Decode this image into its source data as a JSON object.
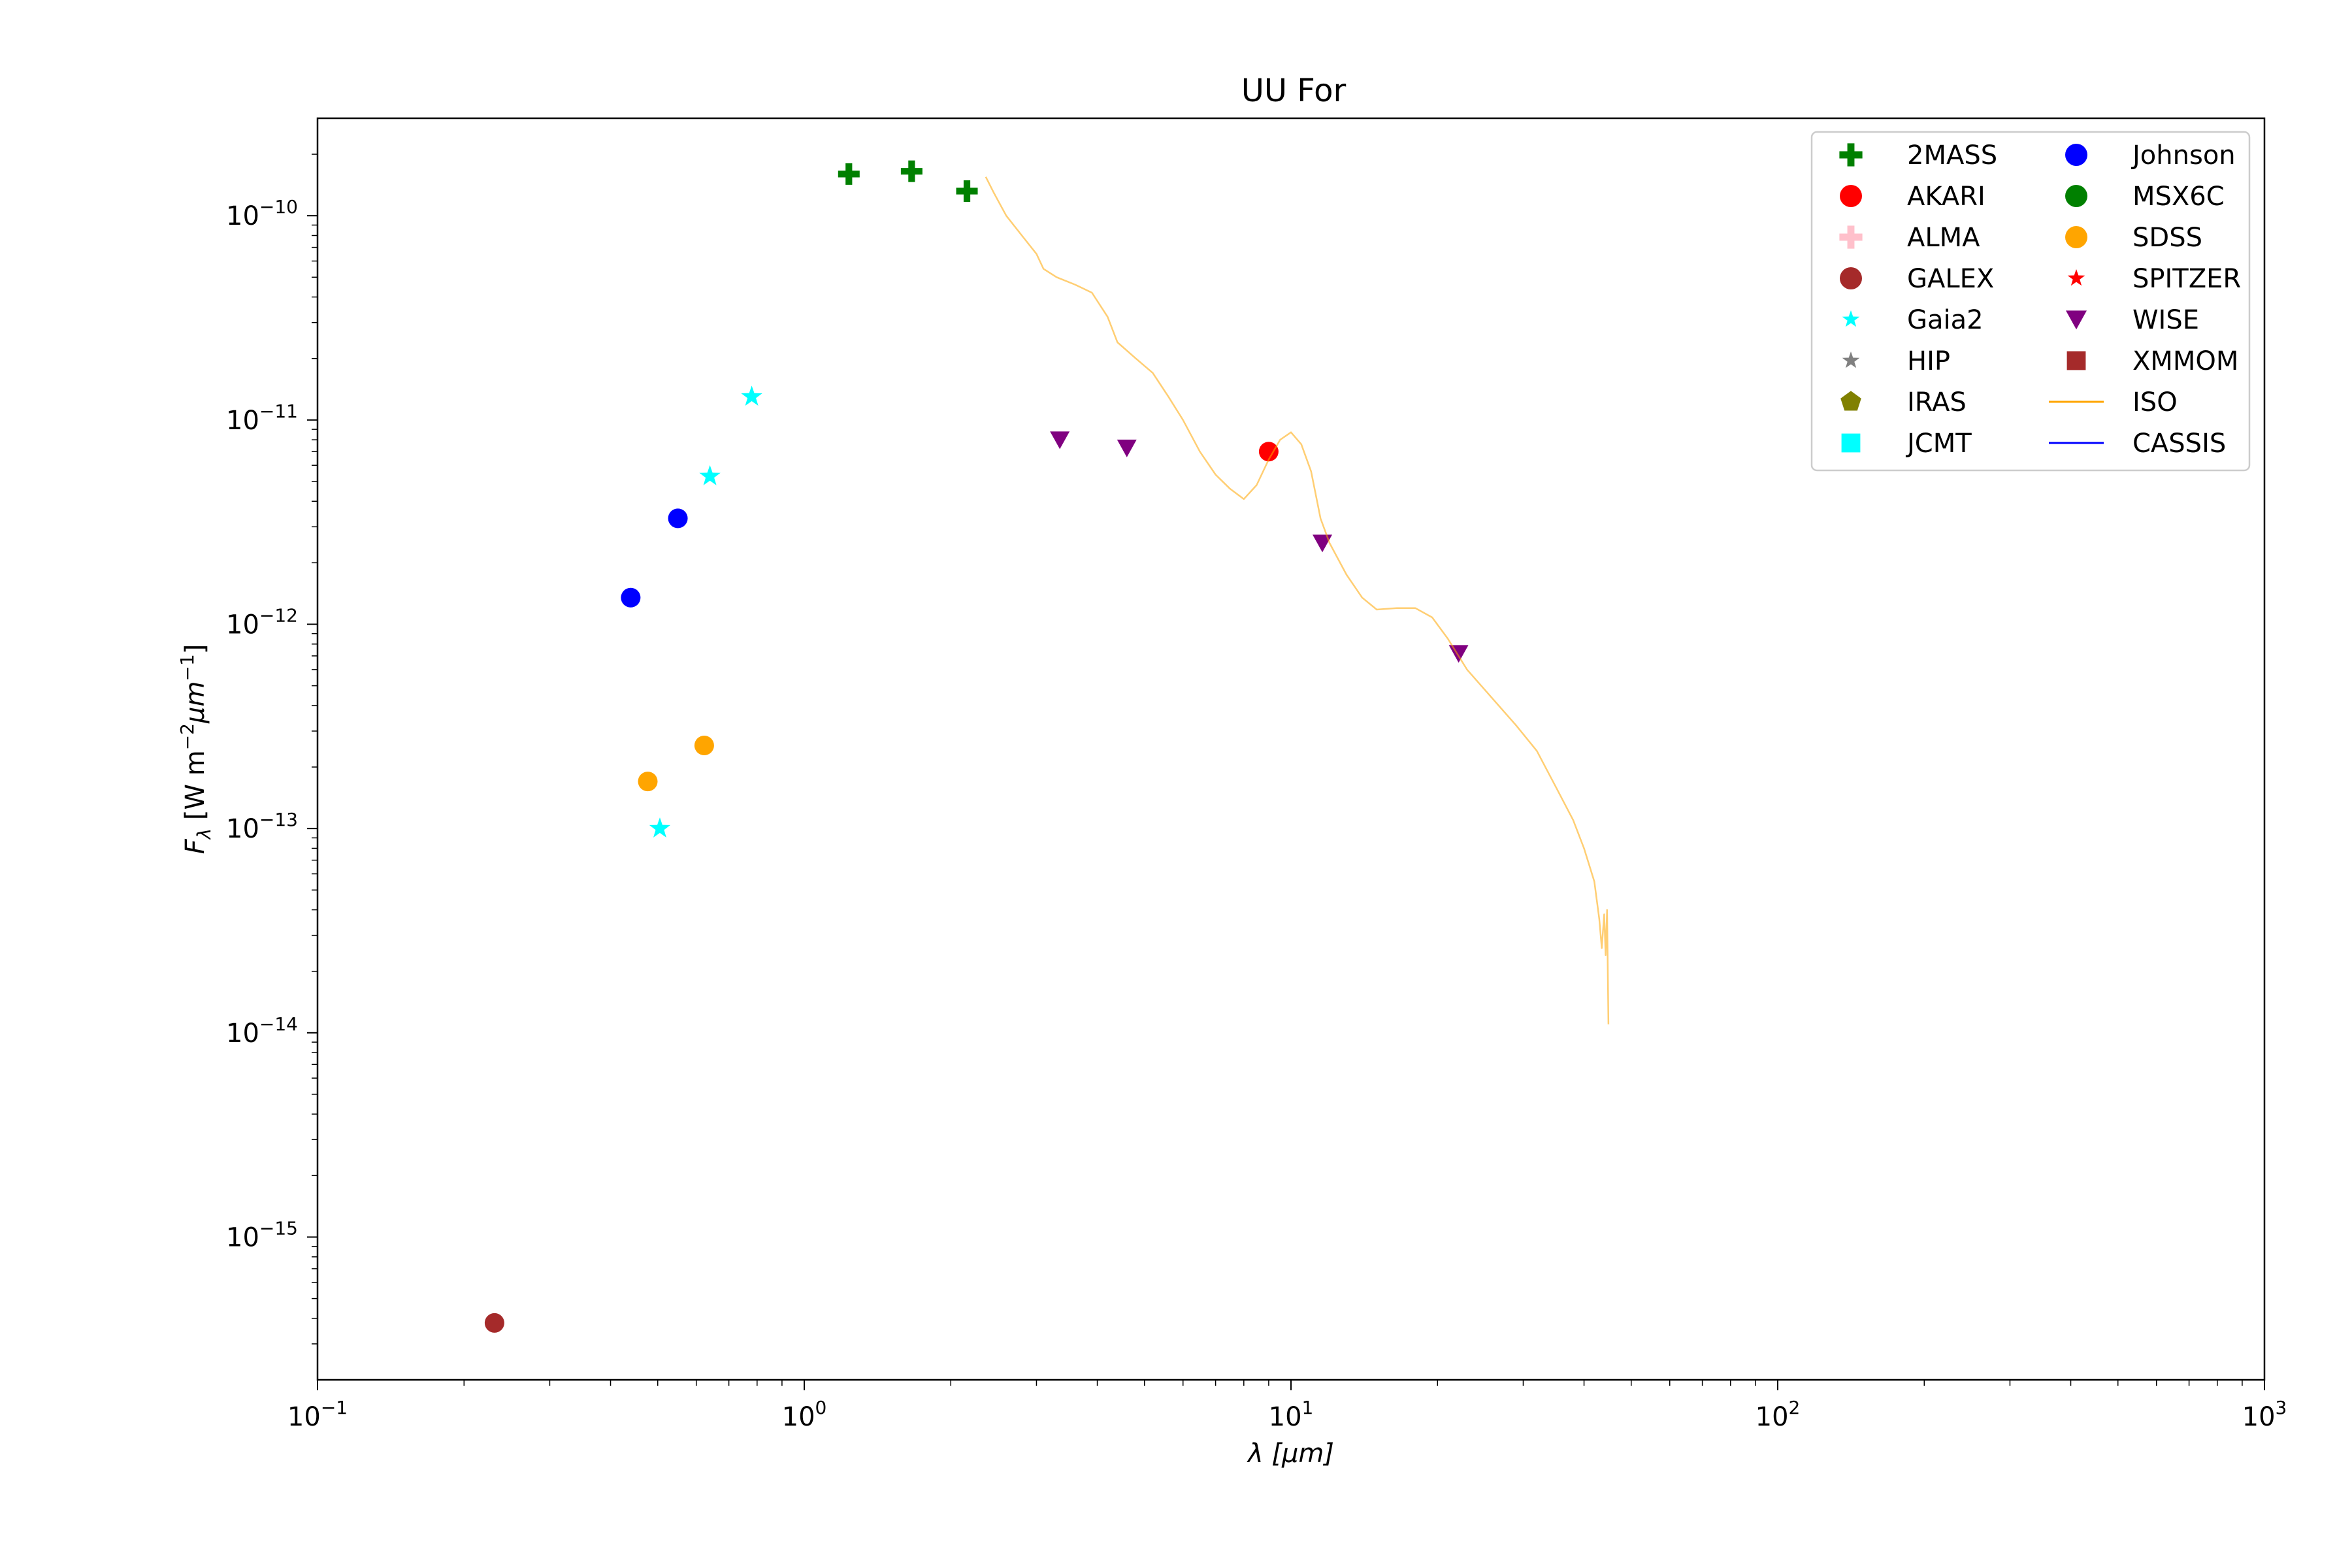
{
  "chart_data": {
    "type": "scatter",
    "title": "UU For",
    "xlabel": "λ [μm]",
    "ylabel": "F_λ [W m^-2 μm^-1]",
    "xscale": "log",
    "yscale": "log",
    "xlim": [
      0.1,
      1000
    ],
    "ylim": [
      2e-16,
      3e-10
    ],
    "x_ticks": [
      {
        "value": 0.1,
        "base": "10",
        "exp": "−1"
      },
      {
        "value": 1,
        "base": "10",
        "exp": "0"
      },
      {
        "value": 10,
        "base": "10",
        "exp": "1"
      },
      {
        "value": 100,
        "base": "10",
        "exp": "2"
      },
      {
        "value": 1000,
        "base": "10",
        "exp": "3"
      }
    ],
    "y_ticks": [
      {
        "value": 1e-10,
        "base": "10",
        "exp": "−10"
      },
      {
        "value": 1e-11,
        "base": "10",
        "exp": "−11"
      },
      {
        "value": 1e-12,
        "base": "10",
        "exp": "−12"
      },
      {
        "value": 1e-13,
        "base": "10",
        "exp": "−13"
      },
      {
        "value": 1e-14,
        "base": "10",
        "exp": "−14"
      },
      {
        "value": 1e-15,
        "base": "10",
        "exp": "−15"
      }
    ],
    "legend_position": "top-right",
    "grid": false,
    "series": [
      {
        "name": "2MASS",
        "marker": "plus",
        "color": "#008000",
        "points": [
          [
            1.235,
            1.6e-10
          ],
          [
            1.662,
            1.65e-10
          ],
          [
            2.159,
            1.32e-10
          ]
        ]
      },
      {
        "name": "AKARI",
        "marker": "circle",
        "color": "#ff0000",
        "points": [
          [
            9.0,
            7e-12
          ]
        ]
      },
      {
        "name": "ALMA",
        "marker": "plus",
        "color": "#ffc0cb",
        "points": []
      },
      {
        "name": "GALEX",
        "marker": "circle",
        "color": "#a52a2a",
        "points": [
          [
            0.231,
            3.8e-16
          ]
        ]
      },
      {
        "name": "Gaia2",
        "marker": "star",
        "color": "#00ffff",
        "points": [
          [
            0.505,
            1e-13
          ],
          [
            0.64,
            5.3e-12
          ],
          [
            0.78,
            1.3e-11
          ]
        ]
      },
      {
        "name": "HIP",
        "marker": "star",
        "color": "#808080",
        "points": []
      },
      {
        "name": "IRAS",
        "marker": "pentagon",
        "color": "#808000",
        "points": []
      },
      {
        "name": "JCMT",
        "marker": "square",
        "color": "#00ffff",
        "points": []
      },
      {
        "name": "Johnson",
        "marker": "circle",
        "color": "#0000ff",
        "points": [
          [
            0.44,
            1.35e-12
          ],
          [
            0.55,
            3.3e-12
          ]
        ]
      },
      {
        "name": "MSX6C",
        "marker": "circle",
        "color": "#008000",
        "points": []
      },
      {
        "name": "SDSS",
        "marker": "circle",
        "color": "#ffa500",
        "points": [
          [
            0.477,
            1.7e-13
          ],
          [
            0.623,
            2.55e-13
          ]
        ]
      },
      {
        "name": "SPITZER",
        "marker": "star",
        "color": "#ff0000",
        "points": []
      },
      {
        "name": "WISE",
        "marker": "triangle-down",
        "color": "#800080",
        "points": [
          [
            3.35,
            8e-12
          ],
          [
            4.6,
            7.3e-12
          ],
          [
            11.6,
            2.5e-12
          ],
          [
            22.1,
            7.2e-13
          ]
        ]
      },
      {
        "name": "XMMOM",
        "marker": "square",
        "color": "#a52a2a",
        "points": []
      },
      {
        "name": "ISO",
        "marker": "line",
        "color": "#ffa500",
        "points": [
          [
            2.36,
            1.55e-10
          ],
          [
            2.45,
            1.3e-10
          ],
          [
            2.6,
            1e-10
          ],
          [
            2.8,
            8e-11
          ],
          [
            3.0,
            6.5e-11
          ],
          [
            3.1,
            5.5e-11
          ],
          [
            3.3,
            5e-11
          ],
          [
            3.6,
            4.6e-11
          ],
          [
            3.9,
            4.2e-11
          ],
          [
            4.2,
            3.2e-11
          ],
          [
            4.4,
            2.4e-11
          ],
          [
            4.8,
            2e-11
          ],
          [
            5.2,
            1.7e-11
          ],
          [
            5.6,
            1.3e-11
          ],
          [
            6.0,
            1e-11
          ],
          [
            6.5,
            7e-12
          ],
          [
            7.0,
            5.4e-12
          ],
          [
            7.5,
            4.6e-12
          ],
          [
            8.0,
            4.1e-12
          ],
          [
            8.5,
            4.8e-12
          ],
          [
            9.0,
            6.4e-12
          ],
          [
            9.5,
            8e-12
          ],
          [
            10.0,
            8.7e-12
          ],
          [
            10.5,
            7.6e-12
          ],
          [
            11.0,
            5.6e-12
          ],
          [
            11.5,
            3.3e-12
          ],
          [
            12.0,
            2.5e-12
          ],
          [
            13.0,
            1.75e-12
          ],
          [
            14.0,
            1.35e-12
          ],
          [
            15.0,
            1.18e-12
          ],
          [
            16.5,
            1.2e-12
          ],
          [
            18.0,
            1.2e-12
          ],
          [
            19.5,
            1.08e-12
          ],
          [
            21.0,
            8.5e-13
          ],
          [
            23.0,
            6e-13
          ],
          [
            26.0,
            4.3e-13
          ],
          [
            29.0,
            3.2e-13
          ],
          [
            32.0,
            2.4e-13
          ],
          [
            35.0,
            1.6e-13
          ],
          [
            38.0,
            1.1e-13
          ],
          [
            40.0,
            8e-14
          ],
          [
            42.0,
            5.5e-14
          ],
          [
            43.0,
            3.6e-14
          ],
          [
            43.5,
            2.6e-14
          ],
          [
            44.0,
            3.8e-14
          ],
          [
            44.3,
            2.4e-14
          ],
          [
            44.6,
            4e-14
          ],
          [
            44.9,
            1.1e-14
          ]
        ]
      },
      {
        "name": "CASSIS",
        "marker": "line",
        "color": "#0000ff",
        "points": []
      }
    ]
  }
}
